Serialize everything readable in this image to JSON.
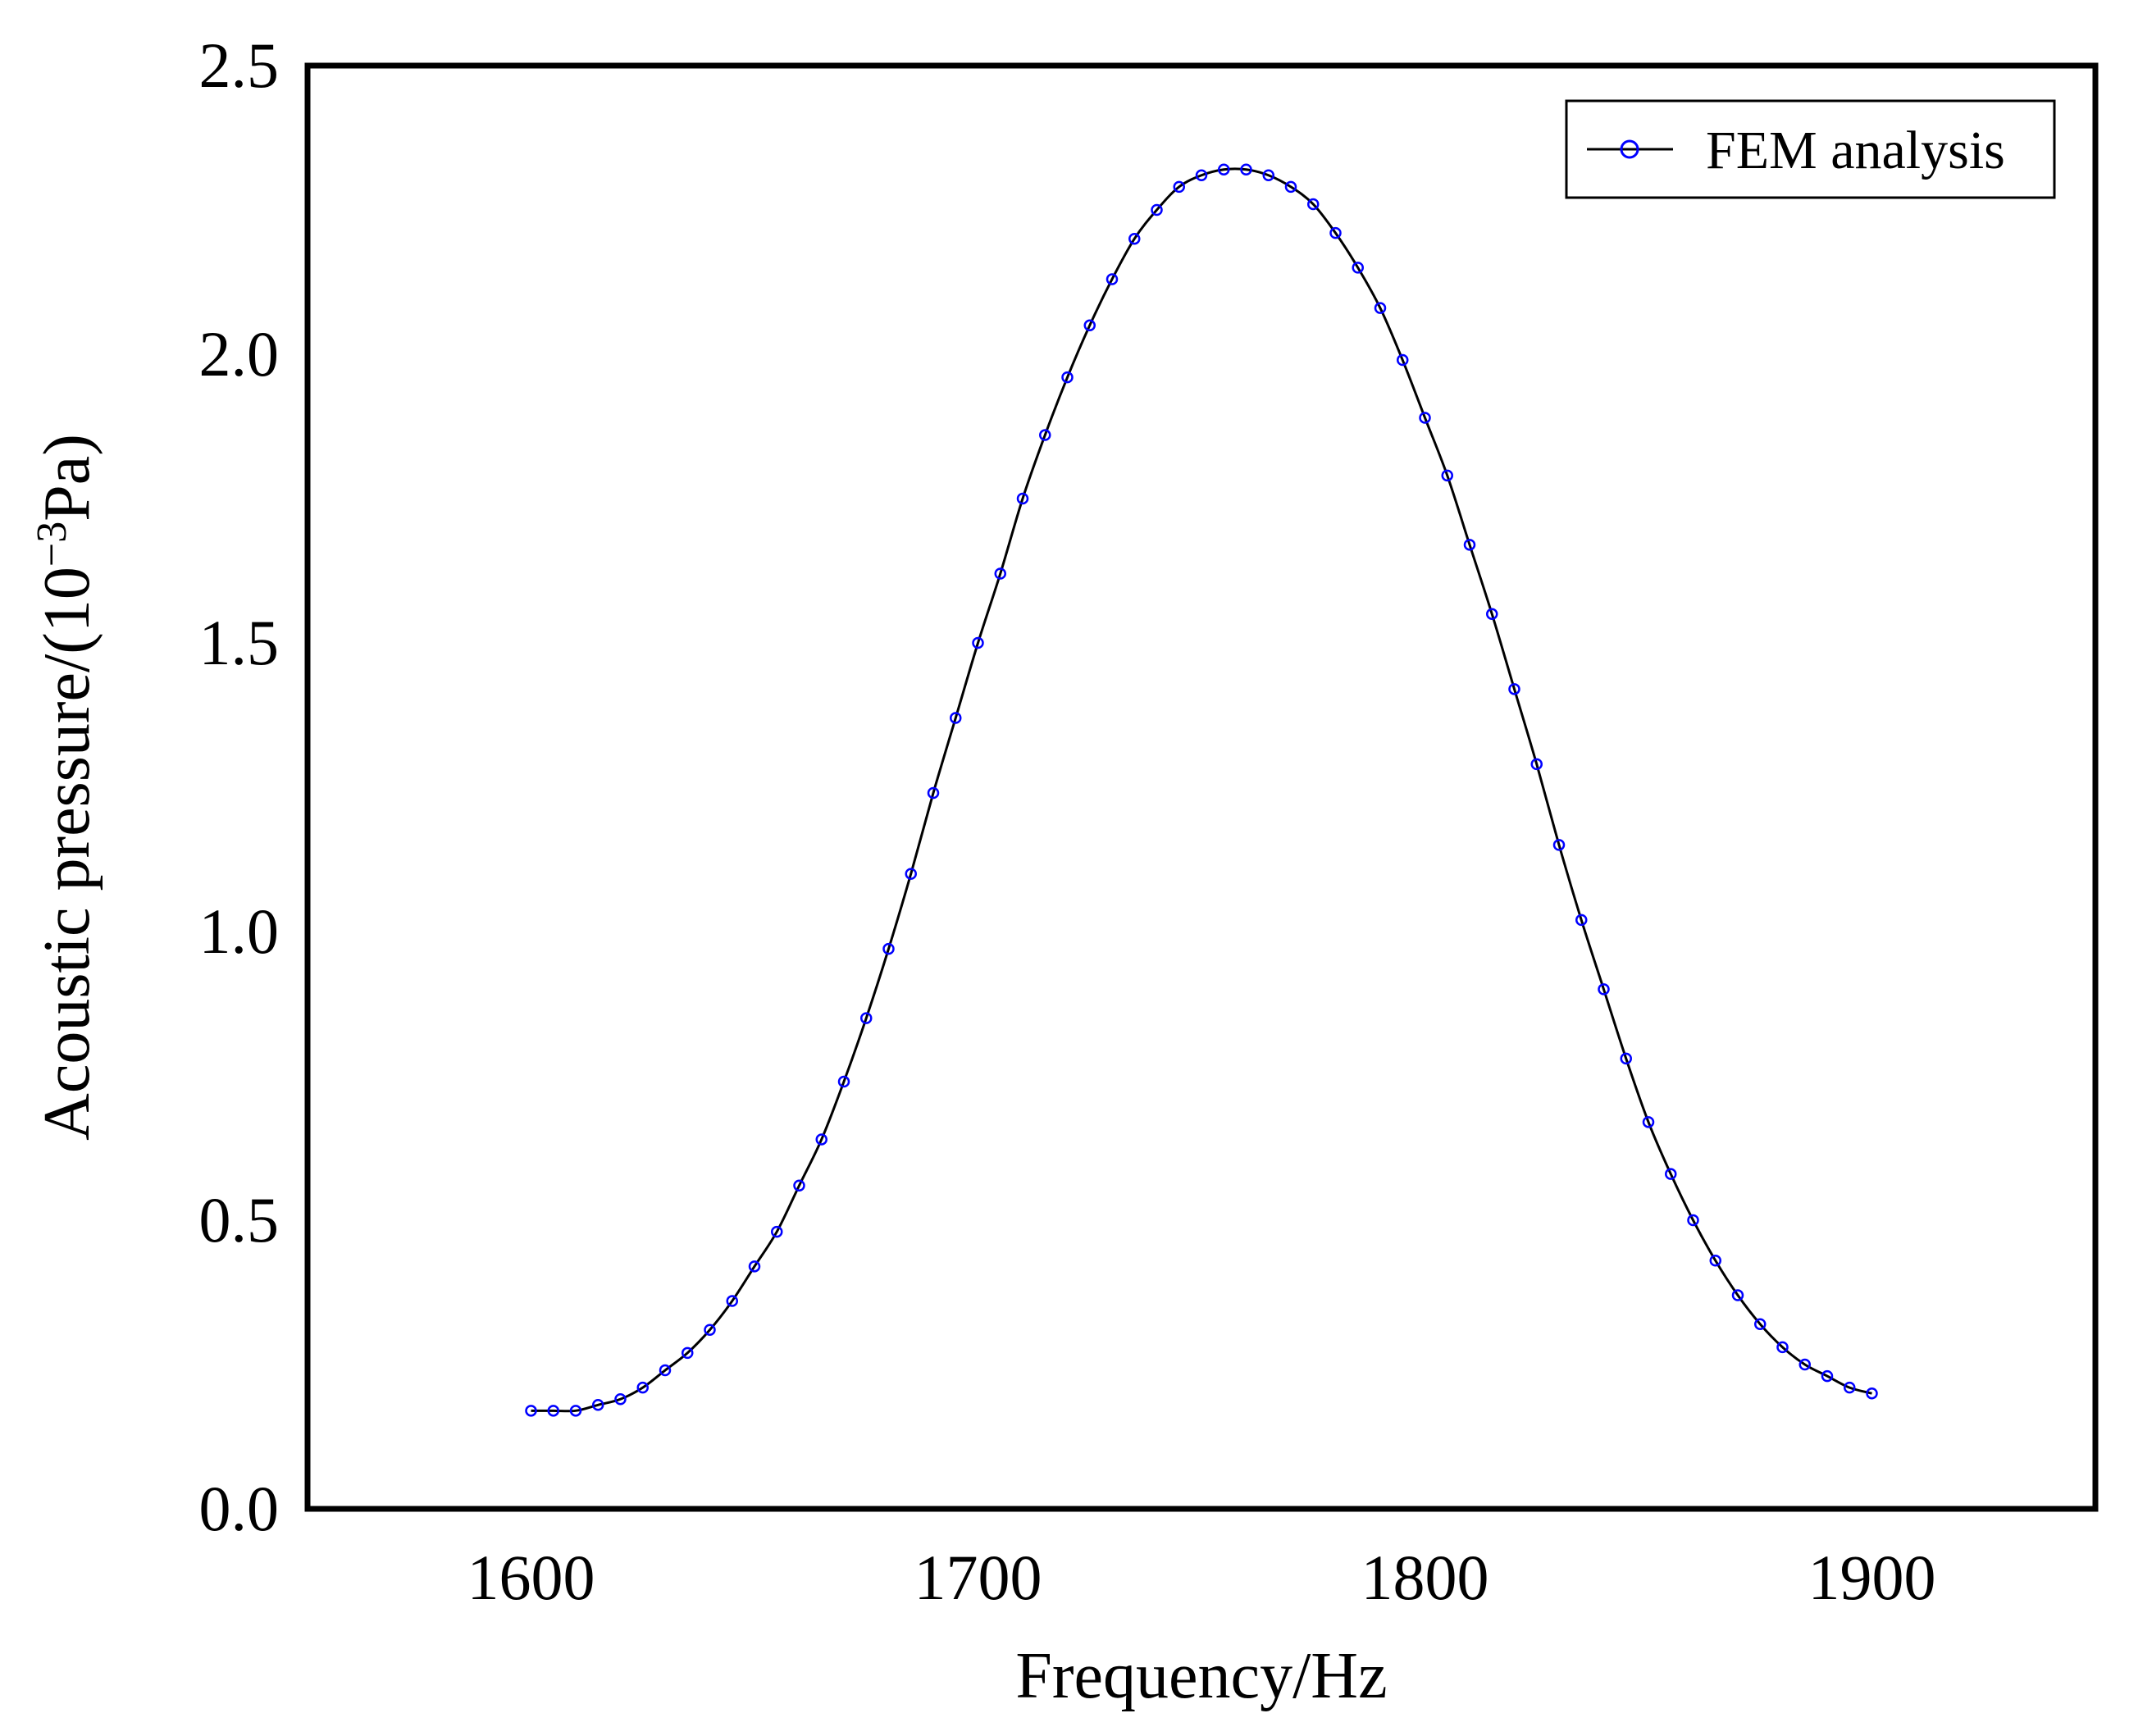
{
  "chart_data": {
    "type": "line",
    "title": "",
    "xlabel": "Frequency/Hz",
    "ylabel_main": "Acoustic pressure/(10",
    "ylabel_exponent": "−3",
    "ylabel_unit": "Pa)",
    "xlim": [
      1550,
      1950
    ],
    "ylim": [
      0.0,
      2.5
    ],
    "xticks": [
      1600,
      1700,
      1800,
      1900
    ],
    "xtick_labels": [
      "1600",
      "1700",
      "1800",
      "1900"
    ],
    "yticks": [
      0.0,
      0.5,
      1.0,
      1.5,
      2.0,
      2.5
    ],
    "ytick_labels": [
      "0.0",
      "0.5",
      "1.0",
      "1.5",
      "2.0",
      "2.5"
    ],
    "grid": false,
    "legend_position": "top-right",
    "series": [
      {
        "name": "FEM analysis",
        "line_color": "#000000",
        "marker": "open-circle",
        "marker_color": "#0000ff",
        "x": [
          1600,
          1605,
          1610,
          1615,
          1620,
          1625,
          1630,
          1635,
          1640,
          1645,
          1650,
          1655,
          1660,
          1665,
          1670,
          1675,
          1680,
          1685,
          1690,
          1695,
          1700,
          1705,
          1710,
          1715,
          1720,
          1725,
          1730,
          1735,
          1740,
          1745,
          1750,
          1755,
          1760,
          1765,
          1770,
          1775,
          1780,
          1785,
          1790,
          1795,
          1800,
          1805,
          1810,
          1815,
          1820,
          1825,
          1830,
          1835,
          1840,
          1845,
          1850,
          1855,
          1860,
          1865,
          1870,
          1875,
          1880,
          1885,
          1890,
          1895,
          1900
        ],
        "y": [
          0.17,
          0.17,
          0.17,
          0.18,
          0.19,
          0.21,
          0.24,
          0.27,
          0.31,
          0.36,
          0.42,
          0.48,
          0.56,
          0.64,
          0.74,
          0.85,
          0.97,
          1.1,
          1.24,
          1.37,
          1.5,
          1.62,
          1.75,
          1.86,
          1.96,
          2.05,
          2.13,
          2.2,
          2.25,
          2.29,
          2.31,
          2.32,
          2.32,
          2.31,
          2.29,
          2.26,
          2.21,
          2.15,
          2.08,
          1.99,
          1.89,
          1.79,
          1.67,
          1.55,
          1.42,
          1.29,
          1.15,
          1.02,
          0.9,
          0.78,
          0.67,
          0.58,
          0.5,
          0.43,
          0.37,
          0.32,
          0.28,
          0.25,
          0.23,
          0.21,
          0.2
        ]
      }
    ]
  }
}
